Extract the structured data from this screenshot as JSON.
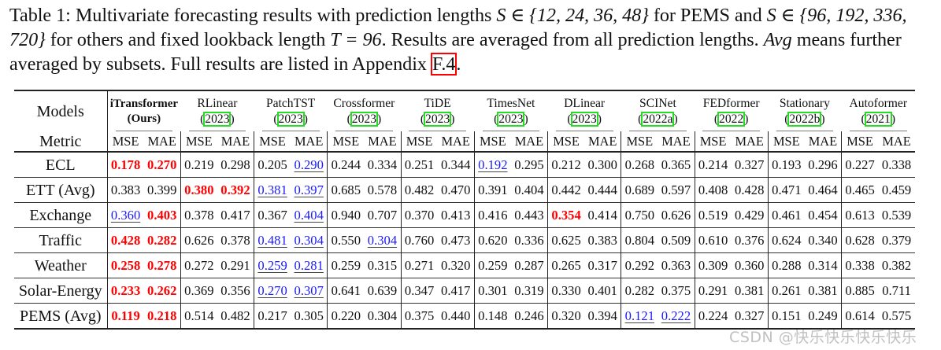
{
  "caption": {
    "prefix": "Table 1: Multivariate forecasting results with prediction lengths ",
    "math1": "S ∈ {12, 24, 36, 48}",
    "mid1": " for PEMS and ",
    "math2": "S ∈ {96, 192, 336, 720}",
    "mid2": " for others and fixed lookback length ",
    "math3": "T = 96",
    "mid3": ". Results are averaged from all prediction lengths. ",
    "avg_em": "Avg",
    "mid4": " means further averaged by subsets. Full results are listed in Appendix ",
    "appendix_ref": "F.4",
    "suffix": "."
  },
  "table": {
    "models_label": "Models",
    "metric_label": "Metric",
    "metric_names": [
      "MSE",
      "MAE"
    ],
    "models": [
      {
        "name": "iTransformer",
        "sub": "(Ours)",
        "ours": true
      },
      {
        "name": "RLinear",
        "cite": "2023"
      },
      {
        "name": "PatchTST",
        "cite": "2023"
      },
      {
        "name": "Crossformer",
        "cite": "2023"
      },
      {
        "name": "TiDE",
        "cite": "2023"
      },
      {
        "name": "TimesNet",
        "cite": "2023"
      },
      {
        "name": "DLinear",
        "cite": "2023"
      },
      {
        "name": "SCINet",
        "cite": "2022a"
      },
      {
        "name": "FEDformer",
        "cite": "2022"
      },
      {
        "name": "Stationary",
        "cite": "2022b"
      },
      {
        "name": "Autoformer",
        "cite": "2021"
      }
    ],
    "rows": [
      {
        "dataset": "ECL",
        "values": [
          "0.178",
          "0.270",
          "0.219",
          "0.298",
          "0.205",
          "0.290",
          "0.244",
          "0.334",
          "0.251",
          "0.344",
          "0.192",
          "0.295",
          "0.212",
          "0.300",
          "0.268",
          "0.365",
          "0.214",
          "0.327",
          "0.193",
          "0.296",
          "0.227",
          "0.338"
        ],
        "styles": [
          "b",
          "b",
          "",
          "",
          "",
          "s",
          "",
          "",
          "",
          "",
          "s",
          "",
          "",
          "",
          "",
          "",
          "",
          "",
          "",
          "",
          "",
          ""
        ]
      },
      {
        "dataset": "ETT (Avg)",
        "values": [
          "0.383",
          "0.399",
          "0.380",
          "0.392",
          "0.381",
          "0.397",
          "0.685",
          "0.578",
          "0.482",
          "0.470",
          "0.391",
          "0.404",
          "0.442",
          "0.444",
          "0.689",
          "0.597",
          "0.408",
          "0.428",
          "0.471",
          "0.464",
          "0.465",
          "0.459"
        ],
        "styles": [
          "",
          "",
          "b",
          "b",
          "s",
          "s",
          "",
          "",
          "",
          "",
          "",
          "",
          "",
          "",
          "",
          "",
          "",
          "",
          "",
          "",
          "",
          ""
        ]
      },
      {
        "dataset": "Exchange",
        "values": [
          "0.360",
          "0.403",
          "0.378",
          "0.417",
          "0.367",
          "0.404",
          "0.940",
          "0.707",
          "0.370",
          "0.413",
          "0.416",
          "0.443",
          "0.354",
          "0.414",
          "0.750",
          "0.626",
          "0.519",
          "0.429",
          "0.461",
          "0.454",
          "0.613",
          "0.539"
        ],
        "styles": [
          "s",
          "b",
          "",
          "",
          "",
          "s",
          "",
          "",
          "",
          "",
          "",
          "",
          "b",
          "",
          "",
          "",
          "",
          "",
          "",
          "",
          "",
          ""
        ]
      },
      {
        "dataset": "Traffic",
        "values": [
          "0.428",
          "0.282",
          "0.626",
          "0.378",
          "0.481",
          "0.304",
          "0.550",
          "0.304",
          "0.760",
          "0.473",
          "0.620",
          "0.336",
          "0.625",
          "0.383",
          "0.804",
          "0.509",
          "0.610",
          "0.376",
          "0.624",
          "0.340",
          "0.628",
          "0.379"
        ],
        "styles": [
          "b",
          "b",
          "",
          "",
          "s",
          "s",
          "",
          "s",
          "",
          "",
          "",
          "",
          "",
          "",
          "",
          "",
          "",
          "",
          "",
          "",
          "",
          ""
        ]
      },
      {
        "dataset": "Weather",
        "values": [
          "0.258",
          "0.278",
          "0.272",
          "0.291",
          "0.259",
          "0.281",
          "0.259",
          "0.315",
          "0.271",
          "0.320",
          "0.259",
          "0.287",
          "0.265",
          "0.317",
          "0.292",
          "0.363",
          "0.309",
          "0.360",
          "0.288",
          "0.314",
          "0.338",
          "0.382"
        ],
        "styles": [
          "b",
          "b",
          "",
          "",
          "s",
          "s",
          "",
          "",
          "",
          "",
          "",
          "",
          "",
          "",
          "",
          "",
          "",
          "",
          "",
          "",
          "",
          ""
        ]
      },
      {
        "dataset": "Solar-Energy",
        "values": [
          "0.233",
          "0.262",
          "0.369",
          "0.356",
          "0.270",
          "0.307",
          "0.641",
          "0.639",
          "0.347",
          "0.417",
          "0.301",
          "0.319",
          "0.330",
          "0.401",
          "0.282",
          "0.375",
          "0.291",
          "0.381",
          "0.261",
          "0.381",
          "0.885",
          "0.711"
        ],
        "styles": [
          "b",
          "b",
          "",
          "",
          "s",
          "s",
          "",
          "",
          "",
          "",
          "",
          "",
          "",
          "",
          "",
          "",
          "",
          "",
          "",
          "",
          "",
          ""
        ]
      },
      {
        "dataset": "PEMS (Avg)",
        "values": [
          "0.119",
          "0.218",
          "0.514",
          "0.482",
          "0.217",
          "0.305",
          "0.220",
          "0.304",
          "0.375",
          "0.440",
          "0.148",
          "0.246",
          "0.320",
          "0.394",
          "0.121",
          "0.222",
          "0.224",
          "0.327",
          "0.151",
          "0.249",
          "0.614",
          "0.575"
        ],
        "styles": [
          "b",
          "b",
          "",
          "",
          "",
          "",
          "",
          "",
          "",
          "",
          "",
          "",
          "",
          "",
          "s",
          "s",
          "",
          "",
          "",
          "",
          "",
          ""
        ]
      }
    ],
    "colors": {
      "best": "#ff0000",
      "second": "#1a1aff",
      "cite_box": "#22dd22",
      "ref_box": "#ff0000"
    }
  },
  "watermark": "CSDN @快乐快乐快乐快乐"
}
